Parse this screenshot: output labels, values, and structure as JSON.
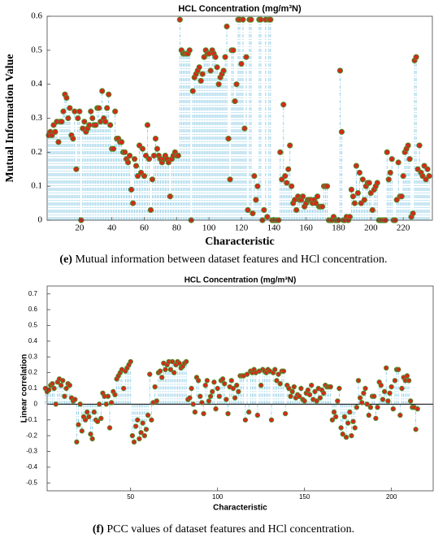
{
  "chart_data": [
    {
      "type": "stem",
      "title": "HCL Concentration (mg/m³N)",
      "ylabel": "Mutual Information Value",
      "xlabel": "Characteristic",
      "caption_tag": "(e)",
      "caption": " Mutual information between dataset features and HCl concentration.",
      "xlim": [
        0,
        238
      ],
      "xticks": [
        20,
        40,
        60,
        80,
        100,
        120,
        140,
        160,
        180,
        200,
        220
      ],
      "ylim": [
        0,
        0.6
      ],
      "yticks": [
        0,
        0.1,
        0.2,
        0.3,
        0.4,
        0.5,
        0.6
      ],
      "baseline": 0,
      "baseline_line": false,
      "color": "#d42a1c",
      "edge_color": "#3c9a2c",
      "stem_color": "#7cc4e2",
      "values": [
        0.25,
        0.26,
        0.25,
        0.28,
        0.26,
        0.29,
        0.23,
        0.29,
        0.29,
        0.32,
        0.37,
        0.36,
        0.3,
        0.33,
        0.25,
        0.24,
        0.32,
        0.15,
        0.3,
        0.32,
        0.0,
        0.27,
        0.29,
        0.26,
        0.27,
        0.28,
        0.32,
        0.3,
        0.28,
        0.28,
        0.33,
        0.33,
        0.29,
        0.38,
        0.3,
        0.29,
        0.33,
        0.37,
        0.28,
        0.21,
        0.21,
        0.32,
        0.24,
        0.24,
        0.23,
        0.23,
        0.2,
        0.2,
        0.18,
        0.17,
        0.19,
        0.09,
        0.05,
        0.18,
        0.16,
        0.13,
        0.22,
        0.14,
        0.21,
        0.13,
        0.19,
        0.28,
        0.18,
        0.03,
        0.12,
        0.19,
        0.24,
        0.21,
        0.19,
        0.18,
        0.17,
        0.18,
        0.19,
        0.18,
        0.17,
        0.07,
        0.18,
        0.19,
        0.2,
        0.19,
        0.19,
        0.59,
        0.5,
        0.49,
        0.49,
        0.49,
        0.49,
        0.5,
        0.0,
        0.38,
        0.42,
        0.43,
        0.44,
        0.45,
        0.41,
        0.43,
        0.48,
        0.5,
        0.49,
        0.49,
        0.44,
        0.5,
        0.49,
        0.48,
        0.45,
        0.4,
        0.42,
        0.43,
        0.44,
        0.48,
        0.57,
        0.24,
        0.12,
        0.5,
        0.5,
        0.35,
        0.4,
        0.59,
        0.59,
        0.46,
        0.59,
        0.27,
        0.48,
        0.03,
        0.59,
        0.59,
        0.02,
        0.13,
        0.06,
        0.1,
        0.59,
        0.59,
        0.0,
        0.03,
        0.59,
        0.01,
        0.59,
        0.59,
        0.0,
        0.0,
        0.0,
        0.0,
        0.0,
        0.2,
        0.12,
        0.34,
        0.13,
        0.11,
        0.15,
        0.22,
        0.1,
        0.05,
        0.06,
        0.03,
        0.07,
        0.06,
        0.06,
        0.07,
        0.04,
        0.05,
        0.06,
        0.06,
        0.06,
        0.05,
        0.06,
        0.05,
        0.07,
        0.04,
        0.04,
        0.04,
        0.1,
        0.1,
        0.1,
        0.0,
        0.0,
        0.0,
        0.01,
        0.0,
        0.0,
        0.0,
        0.44,
        0.26,
        0.0,
        0.0,
        0.01,
        0.0,
        0.01,
        0.09,
        0.07,
        0.05,
        0.16,
        0.08,
        0.14,
        0.05,
        0.12,
        0.06,
        0.1,
        0.11,
        0.11,
        0.08,
        0.03,
        0.09,
        0.1,
        0.11,
        0.0,
        0.0,
        0.0,
        0.0,
        0.0,
        0.2,
        0.12,
        0.14,
        0.18,
        0.0,
        0.0,
        0.06,
        0.17,
        0.07,
        0.07,
        0.13,
        0.2,
        0.21,
        0.22,
        0.18,
        0.01,
        0.02,
        0.47,
        0.48,
        0.15,
        0.22,
        0.14,
        0.13,
        0.16,
        0.12,
        0.15,
        0.13
      ]
    },
    {
      "type": "stem",
      "title": "HCL Concentration (mg/m³N)",
      "ylabel": "Linear correlation",
      "xlabel": "Characteristic",
      "caption_tag": "(f)",
      "caption": " PCC values of dataset features and HCl concentration.",
      "xlim": [
        2,
        224
      ],
      "xticks": [
        50,
        100,
        150,
        200
      ],
      "ylim": [
        -0.55,
        0.75
      ],
      "yticks": [
        0.7,
        0.6,
        0.5,
        0.4,
        0.3,
        0.2,
        0.1,
        0,
        -0.1,
        -0.2,
        -0.3,
        -0.4,
        -0.5
      ],
      "baseline": 0,
      "baseline_line": true,
      "color": "#d42a1c",
      "edge_color": "#3c9a2c",
      "stem_color": "#7cc4e2",
      "values": [
        0.1,
        0.08,
        0.09,
        0.12,
        0.13,
        0.1,
        0.0,
        0.14,
        0.16,
        0.12,
        0.15,
        0.05,
        0.1,
        0.13,
        0.12,
        0.04,
        0.02,
        0.03,
        -0.24,
        -0.13,
        0.0,
        -0.17,
        -0.08,
        -0.1,
        -0.05,
        -0.08,
        -0.19,
        -0.22,
        -0.05,
        -0.1,
        -0.11,
        0.0,
        -0.09,
        0.07,
        0.05,
        0.0,
        0.05,
        -0.15,
        0.01,
        0.08,
        0.06,
        0.16,
        0.18,
        0.2,
        0.22,
        0.1,
        0.21,
        0.23,
        0.25,
        0.27,
        -0.2,
        -0.24,
        -0.14,
        -0.1,
        -0.22,
        -0.18,
        -0.12,
        -0.2,
        -0.16,
        -0.07,
        0.19,
        -0.1,
        0.01,
        0.11,
        0.02,
        0.2,
        0.21,
        0.17,
        0.26,
        0.22,
        0.25,
        0.27,
        0.22,
        0.27,
        0.2,
        0.25,
        0.27,
        0.26,
        0.23,
        0.24,
        0.26,
        0.27,
        0.03,
        0.04,
        0.1,
        0.0,
        -0.05,
        0.17,
        0.15,
        0.05,
        0.01,
        -0.06,
        0.12,
        0.15,
        0.02,
        0.05,
        0.08,
        0.14,
        -0.03,
        0.1,
        0.05,
        0.15,
        0.16,
        0.13,
        0.03,
        -0.06,
        0.11,
        0.15,
        0.1,
        0.04,
        0.12,
        0.08,
        0.18,
        0.18,
        0.18,
        -0.1,
        0.19,
        -0.05,
        0.21,
        0.2,
        0.22,
        0.2,
        -0.07,
        0.21,
        0.12,
        0.22,
        0.21,
        0.2,
        0.22,
        0.21,
        -0.1,
        0.2,
        0.22,
        0.15,
        0.19,
        0.13,
        0.21,
        0.21,
        -0.06,
        0.12,
        0.1,
        0.05,
        0.08,
        0.11,
        0.04,
        0.06,
        0.05,
        0.1,
        0.03,
        0.02,
        0.07,
        0.09,
        0.06,
        0.12,
        0.03,
        0.08,
        0.02,
        0.1,
        0.04,
        0.09,
        0.07,
        0.12,
        0.11,
        0.11,
        0.11,
        -0.1,
        -0.05,
        -0.08,
        0.02,
        0.1,
        -0.15,
        -0.19,
        -0.08,
        -0.21,
        -0.12,
        -0.05,
        -0.2,
        -0.11,
        -0.15,
        -0.02,
        0.15,
        0.04,
        0.01,
        0.07,
        0.1,
        0.0,
        -0.07,
        -0.02,
        0.05,
        0.05,
        -0.09,
        -0.02,
        0.14,
        0.12,
        0.03,
        0.08,
        0.23,
        0.02,
        0.07,
        0.11,
        -0.03,
        0.15,
        0.22,
        0.22,
        -0.07,
        0.1,
        0.17,
        0.15,
        0.18,
        0.15,
        0.02,
        -0.02,
        -0.02,
        -0.16,
        -0.03
      ]
    }
  ]
}
